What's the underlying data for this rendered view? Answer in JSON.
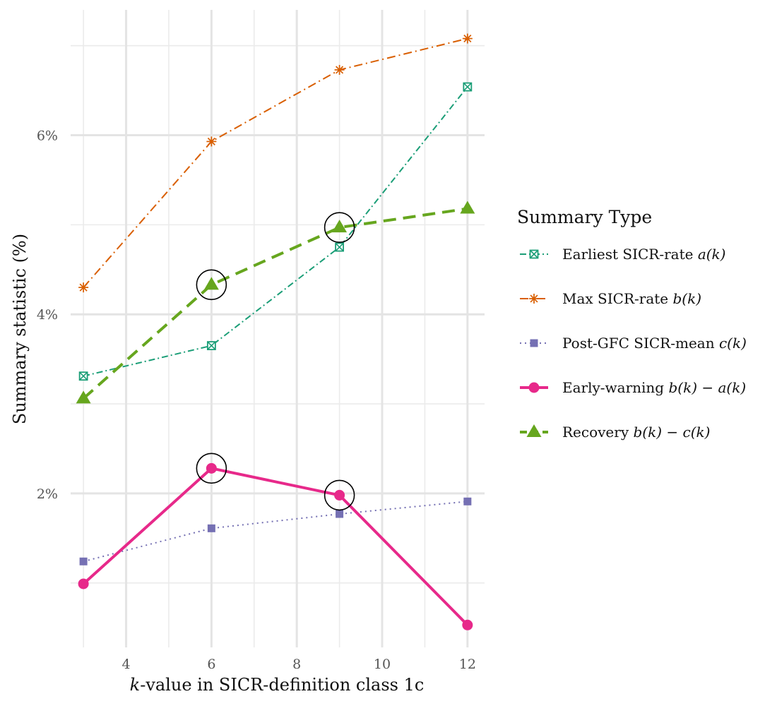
{
  "chart_data": {
    "type": "line",
    "xlabel_prefix": "k",
    "xlabel_rest": "-value in SICR-definition class 1c",
    "ylabel": "Summary statistic (%)",
    "x": [
      3,
      6,
      9,
      12
    ],
    "xlim": [
      2.7,
      12.4
    ],
    "ylim": [
      0.28,
      7.4
    ],
    "x_ticks": [
      4,
      6,
      8,
      10,
      12
    ],
    "x_tick_labels": [
      "4",
      "6",
      "8",
      "10",
      "12"
    ],
    "x_minor_ticks": [
      3,
      5,
      7,
      9,
      11
    ],
    "y_ticks": [
      2,
      4,
      6
    ],
    "y_tick_labels": [
      "2%",
      "4%",
      "6%"
    ],
    "y_minor_ticks": [
      1,
      3,
      5,
      7
    ],
    "grid": true,
    "legend": {
      "title": "Summary Type",
      "placement": "right"
    },
    "series": [
      {
        "name": "Earliest SICR-rate a(k)",
        "legend_prefix": "Earliest SICR-rate ",
        "legend_math": "a(k)",
        "values": [
          3.31,
          3.65,
          4.75,
          6.54
        ],
        "color": "#1b9e77",
        "dash": "dotdash",
        "marker": "square-cross",
        "stroke": 2
      },
      {
        "name": "Max SICR-rate b(k)",
        "legend_prefix": "Max SICR-rate ",
        "legend_math": "b(k)",
        "values": [
          4.3,
          5.93,
          6.73,
          7.08
        ],
        "color": "#d95f02",
        "dash": "dotdash-long",
        "marker": "asterisk",
        "stroke": 2
      },
      {
        "name": "Post-GFC SICR-mean c(k)",
        "legend_prefix": "Post-GFC SICR-mean ",
        "legend_math": "c(k)",
        "values": [
          1.24,
          1.61,
          1.77,
          1.91
        ],
        "color": "#7570b3",
        "dash": "dotted",
        "marker": "square",
        "stroke": 2
      },
      {
        "name": "Early-warning b(k) − a(k)",
        "legend_prefix": "Early-warning ",
        "legend_math": "b(k) − a(k)",
        "values": [
          0.99,
          2.28,
          1.98,
          0.53
        ],
        "color": "#e7298a",
        "dash": "solid",
        "marker": "circle",
        "stroke": 4
      },
      {
        "name": "Recovery b(k) − c(k)",
        "legend_prefix": "Recovery ",
        "legend_math": "b(k) − c(k)",
        "values": [
          3.06,
          4.33,
          4.97,
          5.18
        ],
        "color": "#66a61e",
        "dash": "dashed",
        "marker": "triangle",
        "stroke": 4
      }
    ],
    "highlights": [
      {
        "x": 6,
        "y": 4.33
      },
      {
        "x": 9,
        "y": 4.97
      },
      {
        "x": 6,
        "y": 2.28
      },
      {
        "x": 9,
        "y": 1.98
      }
    ]
  }
}
